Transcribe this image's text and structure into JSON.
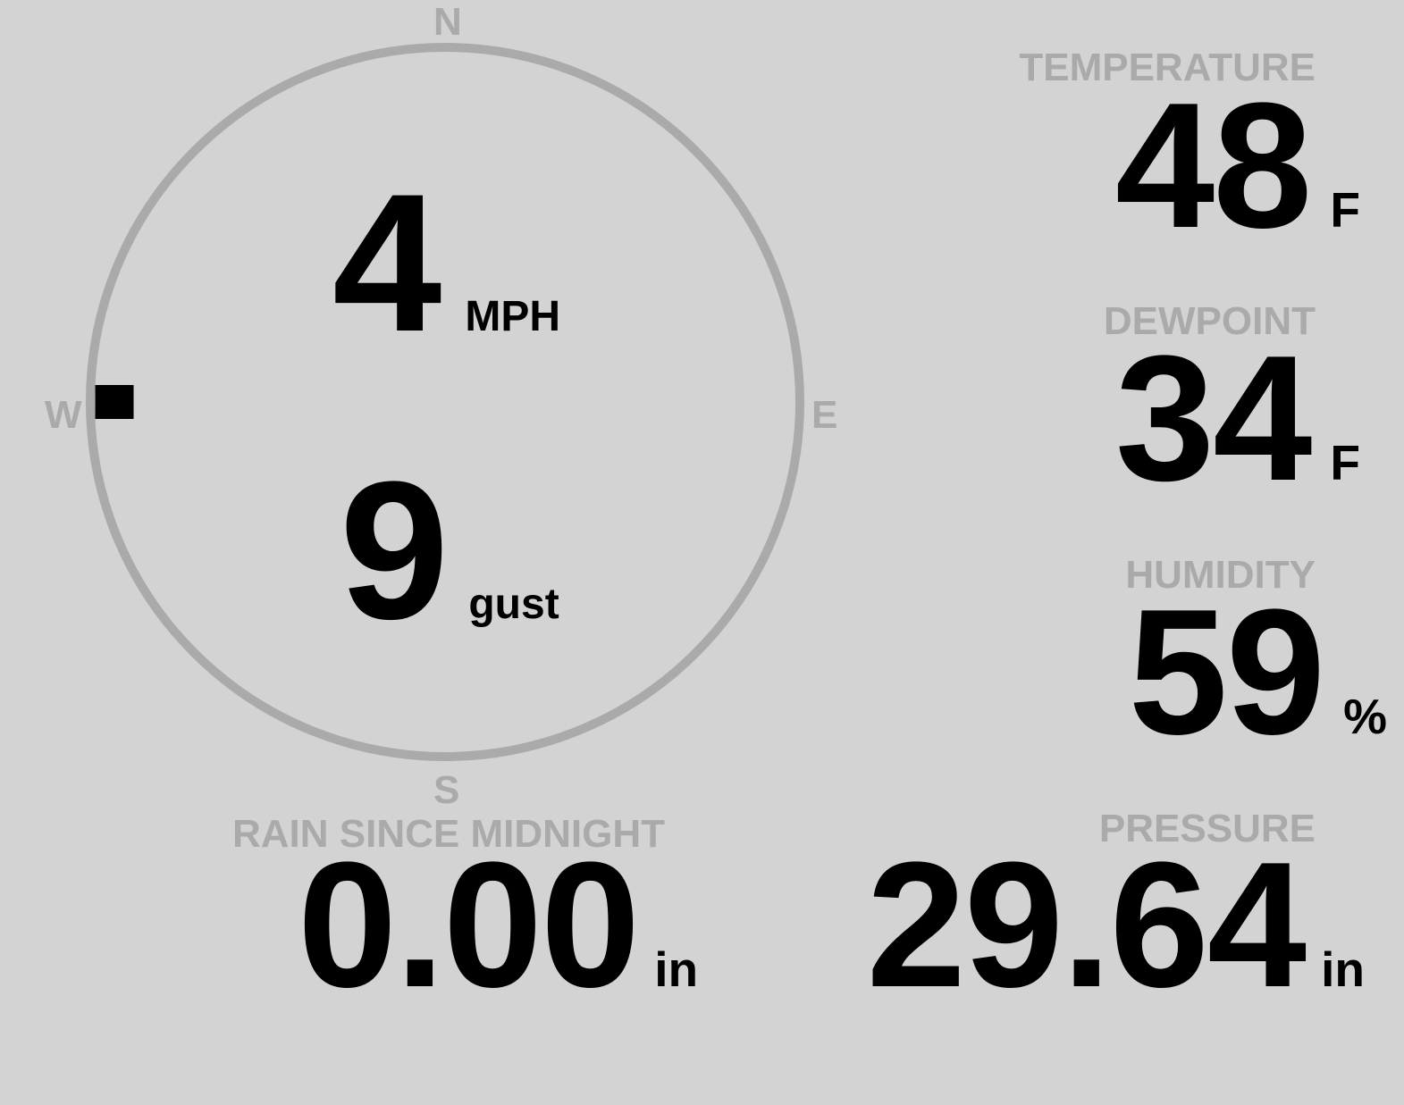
{
  "colors": {
    "background": "#d3d3d3",
    "muted": "#aaaaaa",
    "value": "#000000"
  },
  "wind": {
    "compass": {
      "n": "N",
      "s": "S",
      "e": "E",
      "w": "W"
    },
    "direction_deg": 270,
    "speed": "4",
    "speed_unit": "MPH",
    "gust": "9",
    "gust_unit": "gust"
  },
  "temperature": {
    "label": "TEMPERATURE",
    "value": "48",
    "unit": "F"
  },
  "dewpoint": {
    "label": "DEWPOINT",
    "value": "34",
    "unit": "F"
  },
  "humidity": {
    "label": "HUMIDITY",
    "value": "59",
    "unit": "%"
  },
  "pressure": {
    "label": "PRESSURE",
    "value": "29.64",
    "unit": "in"
  },
  "rain": {
    "label": "RAIN SINCE MIDNIGHT",
    "value": "0.00",
    "unit": "in"
  }
}
